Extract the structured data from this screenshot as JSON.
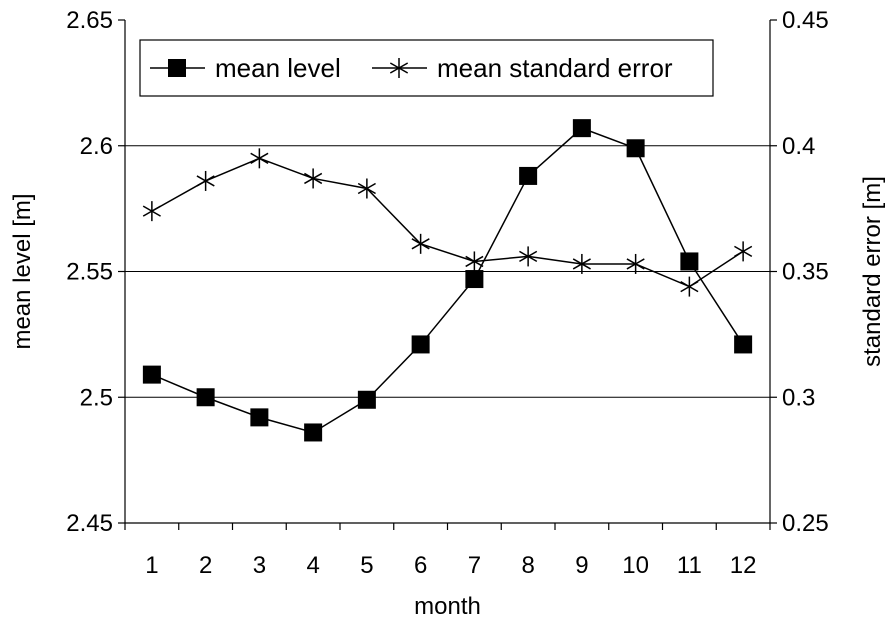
{
  "chart_data": {
    "type": "line",
    "title": "",
    "xlabel": "month",
    "ylabel_left": "mean level [m]",
    "ylabel_right": "standard error [m]",
    "categories": [
      "1",
      "2",
      "3",
      "4",
      "5",
      "6",
      "7",
      "8",
      "9",
      "10",
      "11",
      "12"
    ],
    "y_left_ticks": [
      "2.45",
      "2.5",
      "2.55",
      "2.6",
      "2.65"
    ],
    "y_right_ticks": [
      "0.25",
      "0.3",
      "0.35",
      "0.4",
      "0.45"
    ],
    "ylim_left": [
      2.45,
      2.65
    ],
    "ylim_right": [
      0.25,
      0.45
    ],
    "grid": "horizontal",
    "legend_position": "top-left",
    "series": [
      {
        "name": "mean level",
        "axis": "left",
        "marker": "square",
        "color": "#000000",
        "values": [
          2.509,
          2.5,
          2.492,
          2.486,
          2.499,
          2.521,
          2.547,
          2.588,
          2.607,
          2.599,
          2.554,
          2.521
        ]
      },
      {
        "name": "mean standard error",
        "axis": "right",
        "marker": "asterisk",
        "color": "#000000",
        "values": [
          0.374,
          0.386,
          0.395,
          0.387,
          0.383,
          0.361,
          0.354,
          0.356,
          0.353,
          0.353,
          0.344,
          0.358
        ]
      }
    ]
  }
}
